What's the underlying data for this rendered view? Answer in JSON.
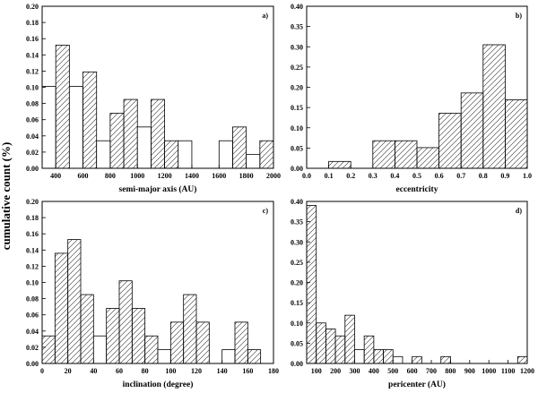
{
  "figure": {
    "shared_ylabel": "cumulative count (%)"
  },
  "chart_data": [
    {
      "type": "bar",
      "panel": "a)",
      "xlabel": "semi-major axis (AU)",
      "ylabel": "cumulative count (%)",
      "xlim": [
        300,
        2000
      ],
      "ylim": [
        0,
        0.2
      ],
      "xticks": [
        400,
        600,
        800,
        1000,
        1200,
        1400,
        1600,
        1800,
        2000
      ],
      "yticks": [
        0.0,
        0.02,
        0.04,
        0.06,
        0.08,
        0.1,
        0.12,
        0.14,
        0.16,
        0.18,
        0.2
      ],
      "xtick_labels": [
        "400",
        "600",
        "800",
        "1000",
        "1200",
        "1400",
        "1600",
        "1800",
        "2000"
      ],
      "ytick_labels": [
        "0.00",
        "0.02",
        "0.04",
        "0.06",
        "0.08",
        "0.10",
        "0.12",
        "0.14",
        "0.16",
        "0.18",
        "0.20"
      ],
      "bin_width": 100,
      "bins": [
        {
          "x0": 300,
          "x1": 400,
          "value": 0.101,
          "hatch": false
        },
        {
          "x0": 400,
          "x1": 500,
          "value": 0.152,
          "hatch": true
        },
        {
          "x0": 500,
          "x1": 600,
          "value": 0.101,
          "hatch": false
        },
        {
          "x0": 600,
          "x1": 700,
          "value": 0.119,
          "hatch": true
        },
        {
          "x0": 700,
          "x1": 800,
          "value": 0.034,
          "hatch": false
        },
        {
          "x0": 800,
          "x1": 900,
          "value": 0.068,
          "hatch": true
        },
        {
          "x0": 900,
          "x1": 1000,
          "value": 0.085,
          "hatch": true
        },
        {
          "x0": 1000,
          "x1": 1100,
          "value": 0.051,
          "hatch": false
        },
        {
          "x0": 1100,
          "x1": 1200,
          "value": 0.085,
          "hatch": true
        },
        {
          "x0": 1200,
          "x1": 1300,
          "value": 0.034,
          "hatch": true
        },
        {
          "x0": 1300,
          "x1": 1400,
          "value": 0.034,
          "hatch": false
        },
        {
          "x0": 1400,
          "x1": 1500,
          "value": 0.0,
          "hatch": false
        },
        {
          "x0": 1500,
          "x1": 1600,
          "value": 0.0,
          "hatch": false
        },
        {
          "x0": 1600,
          "x1": 1700,
          "value": 0.034,
          "hatch": false
        },
        {
          "x0": 1700,
          "x1": 1800,
          "value": 0.051,
          "hatch": true
        },
        {
          "x0": 1800,
          "x1": 1900,
          "value": 0.017,
          "hatch": false
        },
        {
          "x0": 1900,
          "x1": 2000,
          "value": 0.034,
          "hatch": true
        }
      ],
      "grid": false
    },
    {
      "type": "bar",
      "panel": "b)",
      "xlabel": "eccentricity",
      "ylabel": "cumulative count (%)",
      "xlim": [
        0.0,
        1.0
      ],
      "ylim": [
        0,
        0.4
      ],
      "xticks": [
        0.0,
        0.1,
        0.2,
        0.3,
        0.4,
        0.5,
        0.6,
        0.7,
        0.8,
        0.9,
        1.0
      ],
      "yticks": [
        0.0,
        0.05,
        0.1,
        0.15,
        0.2,
        0.25,
        0.3,
        0.35,
        0.4
      ],
      "xtick_labels": [
        "0.0",
        "0.1",
        "0.2",
        "0.3",
        "0.4",
        "0.5",
        "0.6",
        "0.7",
        "0.8",
        "0.9",
        "1.0"
      ],
      "ytick_labels": [
        "0.00",
        "0.05",
        "0.10",
        "0.15",
        "0.20",
        "0.25",
        "0.30",
        "0.35",
        "0.40"
      ],
      "bin_width": 0.1,
      "bins": [
        {
          "x0": 0.0,
          "x1": 0.1,
          "value": 0.0,
          "hatch": false
        },
        {
          "x0": 0.1,
          "x1": 0.2,
          "value": 0.017,
          "hatch": true
        },
        {
          "x0": 0.2,
          "x1": 0.3,
          "value": 0.0,
          "hatch": false
        },
        {
          "x0": 0.3,
          "x1": 0.4,
          "value": 0.068,
          "hatch": true
        },
        {
          "x0": 0.4,
          "x1": 0.5,
          "value": 0.068,
          "hatch": true
        },
        {
          "x0": 0.5,
          "x1": 0.6,
          "value": 0.051,
          "hatch": true
        },
        {
          "x0": 0.6,
          "x1": 0.7,
          "value": 0.136,
          "hatch": true
        },
        {
          "x0": 0.7,
          "x1": 0.8,
          "value": 0.186,
          "hatch": true
        },
        {
          "x0": 0.8,
          "x1": 0.9,
          "value": 0.305,
          "hatch": true
        },
        {
          "x0": 0.9,
          "x1": 1.0,
          "value": 0.169,
          "hatch": true
        }
      ],
      "grid": false
    },
    {
      "type": "bar",
      "panel": "c)",
      "xlabel": "inclination (degree)",
      "ylabel": "cumulative count (%)",
      "xlim": [
        0,
        180
      ],
      "ylim": [
        0,
        0.2
      ],
      "xticks": [
        0,
        20,
        40,
        60,
        80,
        100,
        120,
        140,
        160,
        180
      ],
      "yticks": [
        0.0,
        0.02,
        0.04,
        0.06,
        0.08,
        0.1,
        0.12,
        0.14,
        0.16,
        0.18,
        0.2
      ],
      "xtick_labels": [
        "0",
        "20",
        "40",
        "60",
        "80",
        "100",
        "120",
        "140",
        "160",
        "180"
      ],
      "ytick_labels": [
        "0.00",
        "0.02",
        "0.04",
        "0.06",
        "0.08",
        "0.10",
        "0.12",
        "0.14",
        "0.16",
        "0.18",
        "0.20"
      ],
      "bin_width": 10,
      "bins": [
        {
          "x0": 0,
          "x1": 10,
          "value": 0.034,
          "hatch": true
        },
        {
          "x0": 10,
          "x1": 20,
          "value": 0.136,
          "hatch": true
        },
        {
          "x0": 20,
          "x1": 30,
          "value": 0.153,
          "hatch": true
        },
        {
          "x0": 30,
          "x1": 40,
          "value": 0.085,
          "hatch": true
        },
        {
          "x0": 40,
          "x1": 50,
          "value": 0.034,
          "hatch": false
        },
        {
          "x0": 50,
          "x1": 60,
          "value": 0.068,
          "hatch": true
        },
        {
          "x0": 60,
          "x1": 70,
          "value": 0.102,
          "hatch": true
        },
        {
          "x0": 70,
          "x1": 80,
          "value": 0.068,
          "hatch": true
        },
        {
          "x0": 80,
          "x1": 90,
          "value": 0.034,
          "hatch": true
        },
        {
          "x0": 90,
          "x1": 100,
          "value": 0.017,
          "hatch": false
        },
        {
          "x0": 100,
          "x1": 110,
          "value": 0.051,
          "hatch": true
        },
        {
          "x0": 110,
          "x1": 120,
          "value": 0.085,
          "hatch": true
        },
        {
          "x0": 120,
          "x1": 130,
          "value": 0.051,
          "hatch": true
        },
        {
          "x0": 130,
          "x1": 140,
          "value": 0.0,
          "hatch": false
        },
        {
          "x0": 140,
          "x1": 150,
          "value": 0.017,
          "hatch": false
        },
        {
          "x0": 150,
          "x1": 160,
          "value": 0.051,
          "hatch": true
        },
        {
          "x0": 160,
          "x1": 170,
          "value": 0.017,
          "hatch": true
        },
        {
          "x0": 170,
          "x1": 180,
          "value": 0.0,
          "hatch": false
        }
      ],
      "grid": false
    },
    {
      "type": "bar",
      "panel": "d)",
      "xlabel": "pericenter (AU)",
      "ylabel": "cumulative count (%)",
      "xlim": [
        50,
        1200
      ],
      "ylim": [
        0,
        0.4
      ],
      "xticks": [
        100,
        200,
        300,
        400,
        500,
        600,
        700,
        800,
        900,
        1000,
        1100,
        1200
      ],
      "yticks": [
        0.0,
        0.05,
        0.1,
        0.15,
        0.2,
        0.25,
        0.3,
        0.35,
        0.4
      ],
      "xtick_labels": [
        "100",
        "200",
        "300",
        "400",
        "500",
        "600",
        "700",
        "800",
        "900",
        "1000",
        "1100",
        "1200"
      ],
      "ytick_labels": [
        "0.00",
        "0.05",
        "0.10",
        "0.15",
        "0.20",
        "0.25",
        "0.30",
        "0.35",
        "0.40"
      ],
      "bin_width": 50,
      "bins": [
        {
          "x0": 50,
          "x1": 100,
          "value": 0.39,
          "hatch": true
        },
        {
          "x0": 100,
          "x1": 150,
          "value": 0.1,
          "hatch": true
        },
        {
          "x0": 150,
          "x1": 200,
          "value": 0.085,
          "hatch": true
        },
        {
          "x0": 200,
          "x1": 250,
          "value": 0.068,
          "hatch": true
        },
        {
          "x0": 250,
          "x1": 300,
          "value": 0.119,
          "hatch": true
        },
        {
          "x0": 300,
          "x1": 350,
          "value": 0.034,
          "hatch": false
        },
        {
          "x0": 350,
          "x1": 400,
          "value": 0.068,
          "hatch": true
        },
        {
          "x0": 400,
          "x1": 450,
          "value": 0.034,
          "hatch": true
        },
        {
          "x0": 450,
          "x1": 500,
          "value": 0.034,
          "hatch": true
        },
        {
          "x0": 500,
          "x1": 550,
          "value": 0.017,
          "hatch": false
        },
        {
          "x0": 550,
          "x1": 600,
          "value": 0.0,
          "hatch": false
        },
        {
          "x0": 600,
          "x1": 650,
          "value": 0.017,
          "hatch": true
        },
        {
          "x0": 650,
          "x1": 700,
          "value": 0.0,
          "hatch": false
        },
        {
          "x0": 700,
          "x1": 750,
          "value": 0.0,
          "hatch": false
        },
        {
          "x0": 750,
          "x1": 800,
          "value": 0.017,
          "hatch": true
        },
        {
          "x0": 800,
          "x1": 850,
          "value": 0.0,
          "hatch": false
        },
        {
          "x0": 850,
          "x1": 900,
          "value": 0.0,
          "hatch": false
        },
        {
          "x0": 900,
          "x1": 950,
          "value": 0.0,
          "hatch": false
        },
        {
          "x0": 950,
          "x1": 1000,
          "value": 0.0,
          "hatch": false
        },
        {
          "x0": 1000,
          "x1": 1050,
          "value": 0.0,
          "hatch": false
        },
        {
          "x0": 1050,
          "x1": 1100,
          "value": 0.0,
          "hatch": false
        },
        {
          "x0": 1100,
          "x1": 1150,
          "value": 0.0,
          "hatch": false
        },
        {
          "x0": 1150,
          "x1": 1200,
          "value": 0.017,
          "hatch": true
        }
      ],
      "grid": false
    }
  ]
}
